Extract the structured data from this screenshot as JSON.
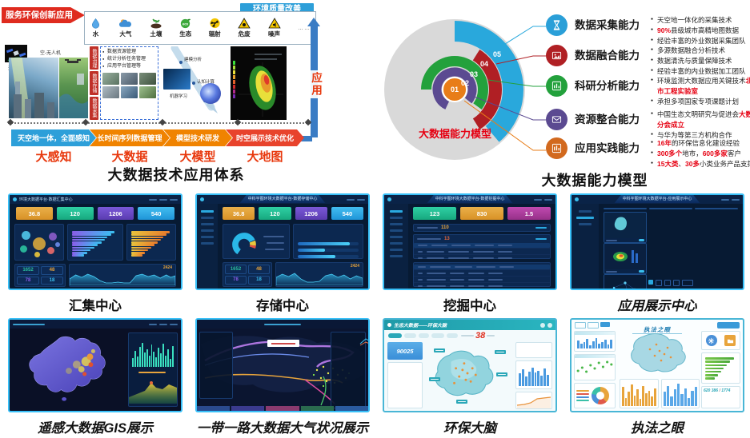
{
  "colors": {
    "accent_cyan": "#38c0f8",
    "banner_red": "#df2b1f",
    "quality_blue": "#2d9fd9",
    "stage_blue": "#2d9fd9",
    "stage_orange": "#f08300",
    "stage_red": "#e8432c",
    "highlight_red": "#e60012",
    "arrow_blue": "#3a7cc4",
    "cap_blue": "#2a9fd8",
    "cap_red": "#b02024",
    "cap_green": "#23a13c",
    "cap_purple": "#5b4a91",
    "cap_orange": "#d2691e",
    "ring_orange": "#e87d18",
    "stat_orange": "#e2a23b",
    "stat_teal": "#28c28f",
    "stat_purple": "#6a4bc4",
    "stat_blue": "#35aee8",
    "stat_magenta": "#aa3a9e",
    "brain_teal": "#2aa7b8",
    "light_border": "#49b6d6"
  },
  "flow": {
    "banner": "服务环保创新应用",
    "quality_tag": "环境质量改善",
    "elements": [
      {
        "label": "水"
      },
      {
        "label": "大气"
      },
      {
        "label": "土壤"
      },
      {
        "label": "生态"
      },
      {
        "label": "辐射"
      },
      {
        "label": "危废"
      },
      {
        "label": "噪声"
      }
    ],
    "more_dots": "……",
    "satellite_label": "天-卫星",
    "drone_label": "空-无人机",
    "side_tabs": [
      "数据治理",
      "数据存储",
      "数据采集"
    ],
    "bullets": [
      "数据资源管理",
      "统计分析任务管理",
      "应用平台管理等"
    ],
    "process_labels": [
      "建模分析",
      "认知计算",
      "机器学习"
    ],
    "app_label": "应用",
    "stages": [
      {
        "arrow": "天空地一体，全面感知",
        "label": "大感知"
      },
      {
        "arrow": "长时间序列数据管理",
        "label": "大数据"
      },
      {
        "arrow": "模型技术研发",
        "label": "大模型"
      },
      {
        "arrow": "时空展示技术优化",
        "label": "大地图"
      }
    ],
    "title": "大数据技术应用体系"
  },
  "model": {
    "center_label": "大数据能力模型",
    "title": "大数据能力模型",
    "ring_nums": [
      "01",
      "02",
      "03",
      "04",
      "05"
    ],
    "capabilities": [
      {
        "label": "数据采集能力",
        "bullets": [
          [
            {
              "t": "天空地一体化的采集技术"
            }
          ],
          [
            {
              "t": "90%",
              "red": true
            },
            {
              "t": "县级城市高精地图数据"
            }
          ],
          [
            {
              "t": "经验丰富的外业数据采集团队"
            }
          ]
        ]
      },
      {
        "label": "数据融合能力",
        "bullets": [
          [
            {
              "t": "多源数据融合分析技术"
            }
          ],
          [
            {
              "t": "数据清洗与质量保障技术"
            }
          ],
          [
            {
              "t": "经验丰富的内业数据加工团队"
            }
          ]
        ]
      },
      {
        "label": "科研分析能力",
        "bullets": [
          [
            {
              "t": "环境监测大数据应用关键技术"
            },
            {
              "t": "北京市工程实验室",
              "red": true
            }
          ],
          [
            {
              "t": "承担多项国家专项课题计划"
            }
          ]
        ]
      },
      {
        "label": "资源整合能力",
        "bullets": [
          [
            {
              "t": "中国生态文明研究与促进会"
            },
            {
              "t": "大数据分会成立",
              "red": true
            }
          ],
          [
            {
              "t": "与华为等第三方机构合作"
            }
          ]
        ]
      },
      {
        "label": "应用实践能力",
        "bullets": [
          [
            {
              "t": "16年",
              "red": true
            },
            {
              "t": "的环保信息化建设经验"
            }
          ],
          [
            {
              "t": "300多个",
              "red": true
            },
            {
              "t": "地市，"
            },
            {
              "t": "600多家",
              "red": true
            },
            {
              "t": "客户"
            }
          ],
          [
            {
              "t": "15大类",
              "red": true
            },
            {
              "t": "、"
            },
            {
              "t": "30多",
              "red": true
            },
            {
              "t": "小类业务产品支撑"
            }
          ]
        ]
      }
    ]
  },
  "dash": {
    "collect": {
      "caption": "汇集中心",
      "header": "环境大数据平台·数据汇集中心",
      "stats": [
        "36.8",
        "120",
        "1206",
        "540"
      ],
      "cards": [
        "1652",
        "48",
        "78",
        "18"
      ],
      "total": "2424"
    },
    "store": {
      "caption": "存储中心",
      "header": "中科宇图环境大数据平台-数据存储中心",
      "stats": [
        "36.8",
        "120",
        "1206",
        "540"
      ],
      "cards": [
        "1652",
        "48",
        "78",
        "18"
      ],
      "total": "2424"
    },
    "mine": {
      "caption": "挖掘中心",
      "header": "中科宇图环境大数据平台-数据挖掘中心",
      "stats": [
        "123",
        "830",
        "1.5"
      ],
      "v1": "110",
      "v2": "13"
    },
    "display": {
      "caption": "应用展示中心",
      "header": "中科宇图环境大数据平台-应用展示中心"
    },
    "gis": {
      "caption": "遥感大数据GIS展示"
    },
    "belt": {
      "caption": "一带一路大数据大气状况展示"
    },
    "brain": {
      "caption": "环保大脑",
      "header": "生态大数据——环保大脑",
      "big": "38",
      "card": "90025"
    },
    "eye": {
      "caption": "执法之眼",
      "title": "执法之眼",
      "n1": "620",
      "n2": "386",
      "n3": "1774"
    }
  },
  "tex": {
    "hbars_purple": [
      92,
      84,
      76,
      70,
      63,
      56,
      48,
      40,
      33,
      26
    ],
    "hbars_yellow": [
      95,
      88,
      80,
      73,
      66,
      58,
      50,
      42,
      34,
      27
    ],
    "store_bars": [
      85,
      45,
      62
    ],
    "gis_bars": [
      35,
      62,
      40,
      78,
      95,
      55,
      70,
      45,
      88,
      60,
      38,
      74,
      52,
      90,
      44,
      68,
      30,
      80
    ],
    "brain_bars": [
      60,
      80,
      45,
      70,
      90,
      65,
      75,
      50,
      85,
      55
    ],
    "eye_bars_blue": [
      70,
      40,
      55,
      85,
      30,
      65,
      90,
      45,
      60,
      75,
      35,
      80
    ],
    "eye_bars_orange": [
      80,
      35,
      60,
      90,
      45,
      70,
      30,
      85,
      55,
      65,
      40,
      75
    ],
    "eye_bars_blue2": [
      60,
      85,
      40,
      70,
      95,
      50,
      75,
      35,
      65,
      80
    ],
    "eye_hbars_green": [
      92,
      80,
      70,
      60,
      50,
      40,
      30
    ]
  }
}
